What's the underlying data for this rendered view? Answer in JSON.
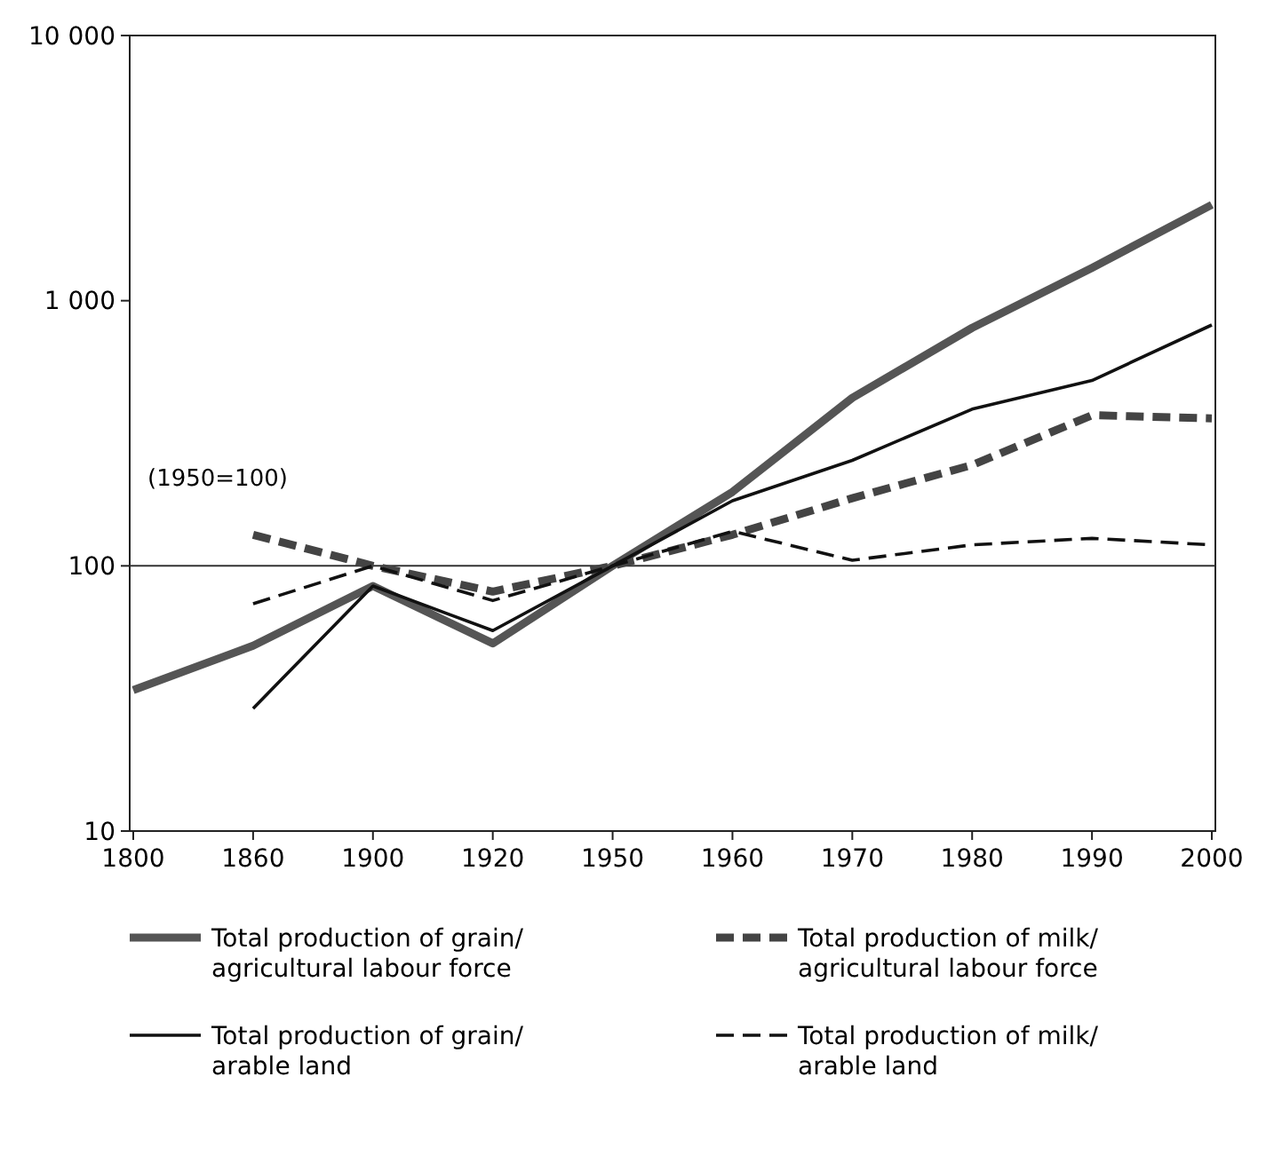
{
  "chart_data": {
    "type": "line",
    "log": "y",
    "categories": [
      "1800",
      "1860",
      "1900",
      "1920",
      "1950",
      "1960",
      "1970",
      "1980",
      "1990",
      "2000"
    ],
    "ylim": [
      10,
      10000
    ],
    "yticks": [
      10,
      100,
      {
        "value": 1000,
        "label": "1 000"
      },
      {
        "value": 10000,
        "label": "10 000"
      }
    ],
    "series": [
      {
        "name": "Total production of grain/\nagricultural labour force",
        "color": "#555555",
        "line_style": "solid",
        "values": [
          34,
          50,
          84,
          51,
          100,
          190,
          430,
          790,
          1330,
          2300
        ]
      },
      {
        "name": "Total production of milk/\nagricultural labour force",
        "color": "#444444",
        "line_style": "dashed",
        "values": [
          null,
          131,
          100,
          80,
          100,
          131,
          180,
          240,
          370,
          360
        ]
      },
      {
        "name": "Total production of grain/\narable land",
        "color": "#111111",
        "line_style": "solid",
        "values": [
          null,
          29,
          84,
          57,
          100,
          176,
          250,
          390,
          500,
          810
        ]
      },
      {
        "name": "Total production of milk/\narable land",
        "color": "#111111",
        "line_style": "dashed",
        "values": [
          null,
          72,
          100,
          74,
          100,
          135,
          105,
          120,
          127,
          120
        ]
      }
    ],
    "ref_lines": [
      {
        "axis": "y",
        "value": 100,
        "color": "#333333"
      }
    ],
    "annotations": [
      "(1950=100)"
    ],
    "grid": false,
    "legend": "bottom",
    "marker": "none"
  }
}
